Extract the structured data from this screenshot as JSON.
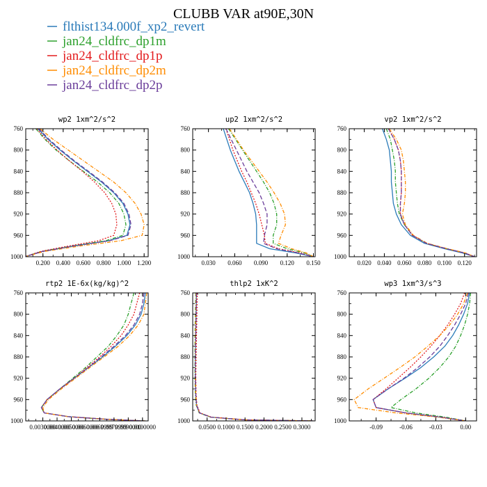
{
  "title": "CLUBB VAR at90E,30N",
  "legend": [
    {
      "label": "flthist134.000f_xp2_revert",
      "color": "#2b7bb9",
      "dash": ""
    },
    {
      "label": "jan24_cldfrc_dp1m",
      "color": "#2ca02c",
      "dash": "5,2,1,2"
    },
    {
      "label": "jan24_cldfrc_dp1p",
      "color": "#e31a1c",
      "dash": "2,2"
    },
    {
      "label": "jan24_cldfrc_dp2m",
      "color": "#ff8c00",
      "dash": "5,2,1,2"
    },
    {
      "label": "jan24_cldfrc_dp2p",
      "color": "#6a3d9a",
      "dash": "6,3"
    }
  ],
  "chart_data": [
    {
      "type": "line",
      "title": "wp2  1xm^2/s^2",
      "xlim": [
        0.03,
        1.24
      ],
      "ylim": [
        760,
        1000
      ],
      "xticks": [
        0.2,
        0.4,
        0.6,
        0.8,
        1.0,
        1.2
      ],
      "xtick_labels": [
        "0.200",
        "0.400",
        "0.600",
        "0.800",
        "1.000",
        "1.200"
      ],
      "yticks": [
        760,
        800,
        840,
        880,
        920,
        960,
        1000
      ],
      "ytick_labels": [
        "760",
        "800",
        "840",
        "880",
        "920",
        "960",
        "1000"
      ],
      "y": [
        760,
        780,
        800,
        820,
        840,
        860,
        880,
        900,
        920,
        940,
        960,
        970,
        980,
        990,
        1000
      ],
      "series": [
        {
          "values": [
            0.15,
            0.25,
            0.37,
            0.5,
            0.64,
            0.78,
            0.9,
            0.99,
            1.04,
            1.06,
            1.03,
            0.85,
            0.5,
            0.2,
            0.02
          ]
        },
        {
          "values": [
            0.13,
            0.22,
            0.33,
            0.46,
            0.6,
            0.74,
            0.86,
            0.95,
            1.0,
            1.02,
            0.99,
            0.82,
            0.48,
            0.19,
            0.02
          ]
        },
        {
          "values": [
            0.14,
            0.23,
            0.34,
            0.46,
            0.59,
            0.71,
            0.81,
            0.88,
            0.92,
            0.93,
            0.9,
            0.75,
            0.45,
            0.18,
            0.02
          ]
        },
        {
          "values": [
            0.17,
            0.3,
            0.45,
            0.6,
            0.75,
            0.9,
            1.02,
            1.11,
            1.17,
            1.2,
            1.18,
            0.97,
            0.56,
            0.22,
            0.02
          ]
        },
        {
          "values": [
            0.16,
            0.26,
            0.38,
            0.51,
            0.65,
            0.79,
            0.91,
            1.0,
            1.05,
            1.07,
            1.04,
            0.86,
            0.5,
            0.2,
            0.02
          ]
        }
      ]
    },
    {
      "type": "line",
      "title": "up2  1xm^2/s^2",
      "xlim": [
        0.012,
        0.152
      ],
      "ylim": [
        760,
        1000
      ],
      "xticks": [
        0.03,
        0.06,
        0.09,
        0.12,
        0.15
      ],
      "xtick_labels": [
        "0.030",
        "0.060",
        "0.090",
        "0.120",
        "0.150"
      ],
      "yticks": [
        760,
        800,
        840,
        880,
        920,
        960,
        1000
      ],
      "ytick_labels": [
        "760",
        "800",
        "840",
        "880",
        "920",
        "960",
        "1000"
      ],
      "y": [
        760,
        780,
        800,
        820,
        840,
        860,
        880,
        900,
        920,
        940,
        960,
        975,
        985,
        993,
        1000
      ],
      "series": [
        {
          "values": [
            0.047,
            0.051,
            0.055,
            0.06,
            0.065,
            0.071,
            0.077,
            0.081,
            0.084,
            0.085,
            0.085,
            0.085,
            0.1,
            0.13,
            0.15
          ]
        },
        {
          "values": [
            0.053,
            0.061,
            0.069,
            0.077,
            0.085,
            0.093,
            0.1,
            0.105,
            0.108,
            0.108,
            0.104,
            0.104,
            0.12,
            0.14,
            0.15
          ]
        },
        {
          "values": [
            0.05,
            0.054,
            0.058,
            0.063,
            0.068,
            0.074,
            0.079,
            0.084,
            0.088,
            0.091,
            0.094,
            0.095,
            0.11,
            0.135,
            0.15
          ]
        },
        {
          "values": [
            0.054,
            0.062,
            0.07,
            0.079,
            0.088,
            0.097,
            0.105,
            0.112,
            0.117,
            0.118,
            0.113,
            0.11,
            0.125,
            0.142,
            0.15
          ]
        },
        {
          "values": [
            0.05,
            0.056,
            0.062,
            0.068,
            0.074,
            0.081,
            0.088,
            0.093,
            0.097,
            0.097,
            0.094,
            0.093,
            0.108,
            0.133,
            0.15
          ]
        }
      ]
    },
    {
      "type": "line",
      "title": "vp2  1xm^2/s^2",
      "xlim": [
        0.005,
        0.132
      ],
      "ylim": [
        760,
        1000
      ],
      "xticks": [
        0.02,
        0.04,
        0.06,
        0.08,
        0.1,
        0.12
      ],
      "xtick_labels": [
        "0.020",
        "0.040",
        "0.060",
        "0.080",
        "0.100",
        "0.120"
      ],
      "yticks": [
        760,
        800,
        840,
        880,
        920,
        960,
        1000
      ],
      "ytick_labels": [
        "760",
        "800",
        "840",
        "880",
        "920",
        "960",
        "1000"
      ],
      "y": [
        760,
        780,
        800,
        820,
        840,
        860,
        880,
        900,
        920,
        940,
        960,
        975,
        985,
        993,
        1000
      ],
      "series": [
        {
          "values": [
            0.038,
            0.042,
            0.045,
            0.046,
            0.047,
            0.047,
            0.048,
            0.049,
            0.052,
            0.057,
            0.066,
            0.08,
            0.1,
            0.118,
            0.13
          ]
        },
        {
          "values": [
            0.042,
            0.046,
            0.048,
            0.05,
            0.051,
            0.051,
            0.052,
            0.053,
            0.055,
            0.06,
            0.068,
            0.082,
            0.102,
            0.12,
            0.13
          ]
        },
        {
          "values": [
            0.044,
            0.05,
            0.054,
            0.056,
            0.057,
            0.057,
            0.057,
            0.056,
            0.056,
            0.06,
            0.068,
            0.082,
            0.102,
            0.12,
            0.13
          ]
        },
        {
          "values": [
            0.045,
            0.052,
            0.057,
            0.059,
            0.06,
            0.061,
            0.061,
            0.06,
            0.058,
            0.061,
            0.069,
            0.083,
            0.103,
            0.121,
            0.13
          ]
        },
        {
          "values": [
            0.044,
            0.05,
            0.054,
            0.056,
            0.057,
            0.057,
            0.057,
            0.056,
            0.056,
            0.06,
            0.068,
            0.082,
            0.102,
            0.12,
            0.13
          ]
        }
      ]
    },
    {
      "type": "line",
      "title": "rtp2  1E-6x(kg/kg)^2",
      "xlim": [
        0.0018,
        0.0104
      ],
      "ylim": [
        760,
        1000
      ],
      "xticks": [
        0.003,
        0.004,
        0.005,
        0.006,
        0.007,
        0.008,
        0.009,
        0.01
      ],
      "xtick_labels": [
        "0.0030000",
        "0.0040000",
        "0.0050000",
        "0.0060000",
        "0.0069999",
        "0.0079999",
        "0.0090000",
        "0.0100000"
      ],
      "yticks": [
        760,
        800,
        840,
        880,
        920,
        960,
        1000
      ],
      "ytick_labels": [
        "760",
        "800",
        "840",
        "880",
        "920",
        "960",
        "1000"
      ],
      "y": [
        760,
        780,
        800,
        820,
        840,
        860,
        880,
        900,
        920,
        940,
        960,
        975,
        985,
        992,
        997,
        1000
      ],
      "series": [
        {
          "values": [
            0.0102,
            0.0101,
            0.0099,
            0.0095,
            0.0089,
            0.0081,
            0.0072,
            0.0062,
            0.0052,
            0.0042,
            0.0033,
            0.0029,
            0.0031,
            0.0048,
            0.0075,
            0.0102
          ]
        },
        {
          "values": [
            0.0094,
            0.0092,
            0.009,
            0.0087,
            0.0082,
            0.0076,
            0.0068,
            0.006,
            0.0051,
            0.0042,
            0.0033,
            0.0029,
            0.0031,
            0.0048,
            0.0075,
            0.01
          ]
        },
        {
          "values": [
            0.0098,
            0.0096,
            0.0094,
            0.009,
            0.0085,
            0.0078,
            0.007,
            0.0061,
            0.0052,
            0.0042,
            0.0033,
            0.0029,
            0.0031,
            0.0048,
            0.0075,
            0.0101
          ]
        },
        {
          "values": [
            0.0103,
            0.0102,
            0.0101,
            0.0097,
            0.0091,
            0.0083,
            0.0073,
            0.0063,
            0.0053,
            0.0043,
            0.0034,
            0.003,
            0.0031,
            0.0048,
            0.0075,
            0.0102
          ]
        },
        {
          "values": [
            0.0101,
            0.01,
            0.0098,
            0.0094,
            0.0088,
            0.008,
            0.0071,
            0.0062,
            0.0052,
            0.0042,
            0.0033,
            0.0029,
            0.0031,
            0.0048,
            0.0075,
            0.0101
          ]
        }
      ]
    },
    {
      "type": "line",
      "title": "thlp2  1xK^2",
      "xlim": [
        0.012,
        0.335
      ],
      "ylim": [
        760,
        1000
      ],
      "xticks": [
        0.05,
        0.1,
        0.15,
        0.2,
        0.25,
        0.3
      ],
      "xtick_labels": [
        "0.0500",
        "0.1000",
        "0.1500",
        "0.2000",
        "0.2500",
        "0.3000"
      ],
      "yticks": [
        760,
        800,
        840,
        880,
        920,
        960,
        1000
      ],
      "ytick_labels": [
        "760",
        "800",
        "840",
        "880",
        "920",
        "960",
        "1000"
      ],
      "y": [
        760,
        800,
        840,
        880,
        920,
        950,
        970,
        985,
        993,
        998,
        1000
      ],
      "series": [
        {
          "values": [
            0.022,
            0.021,
            0.02,
            0.019,
            0.019,
            0.02,
            0.022,
            0.03,
            0.06,
            0.15,
            0.33
          ]
        },
        {
          "values": [
            0.02,
            0.019,
            0.018,
            0.018,
            0.018,
            0.019,
            0.021,
            0.029,
            0.058,
            0.15,
            0.33
          ]
        },
        {
          "values": [
            0.024,
            0.023,
            0.022,
            0.021,
            0.02,
            0.021,
            0.023,
            0.031,
            0.062,
            0.15,
            0.33
          ]
        },
        {
          "values": [
            0.021,
            0.02,
            0.019,
            0.019,
            0.019,
            0.02,
            0.022,
            0.03,
            0.06,
            0.15,
            0.33
          ]
        },
        {
          "values": [
            0.022,
            0.021,
            0.02,
            0.019,
            0.019,
            0.02,
            0.022,
            0.03,
            0.06,
            0.15,
            0.33
          ]
        }
      ]
    },
    {
      "type": "line",
      "title": "wp3  1xm^3/s^3",
      "xlim": [
        -0.117,
        0.011
      ],
      "ylim": [
        760,
        1000
      ],
      "xticks": [
        -0.09,
        -0.06,
        -0.03,
        0.0
      ],
      "xtick_labels": [
        "-0.09",
        "-0.06",
        "-0.03",
        "0.00"
      ],
      "yticks": [
        760,
        800,
        840,
        880,
        920,
        960,
        1000
      ],
      "ytick_labels": [
        "760",
        "800",
        "840",
        "880",
        "920",
        "960",
        "1000"
      ],
      "y": [
        760,
        780,
        800,
        820,
        840,
        860,
        880,
        900,
        920,
        940,
        960,
        975,
        985,
        993,
        1000
      ],
      "series": [
        {
          "values": [
            0.004,
            0.002,
            -0.002,
            -0.007,
            -0.013,
            -0.021,
            -0.032,
            -0.045,
            -0.061,
            -0.078,
            -0.093,
            -0.09,
            -0.06,
            -0.025,
            0.0
          ]
        },
        {
          "values": [
            0.005,
            0.004,
            0.002,
            -0.001,
            -0.005,
            -0.01,
            -0.017,
            -0.026,
            -0.037,
            -0.05,
            -0.065,
            -0.075,
            -0.05,
            -0.02,
            0.0
          ]
        },
        {
          "values": [
            -0.001,
            -0.005,
            -0.011,
            -0.018,
            -0.026,
            -0.035,
            -0.045,
            -0.056,
            -0.068,
            -0.08,
            -0.093,
            -0.09,
            -0.06,
            -0.025,
            0.0
          ]
        },
        {
          "values": [
            0.002,
            -0.002,
            -0.008,
            -0.016,
            -0.026,
            -0.038,
            -0.051,
            -0.066,
            -0.082,
            -0.098,
            -0.112,
            -0.108,
            -0.07,
            -0.028,
            0.0
          ]
        },
        {
          "values": [
            0.003,
            0.0,
            -0.005,
            -0.011,
            -0.018,
            -0.026,
            -0.036,
            -0.048,
            -0.062,
            -0.078,
            -0.093,
            -0.09,
            -0.06,
            -0.025,
            0.0
          ]
        }
      ]
    }
  ]
}
